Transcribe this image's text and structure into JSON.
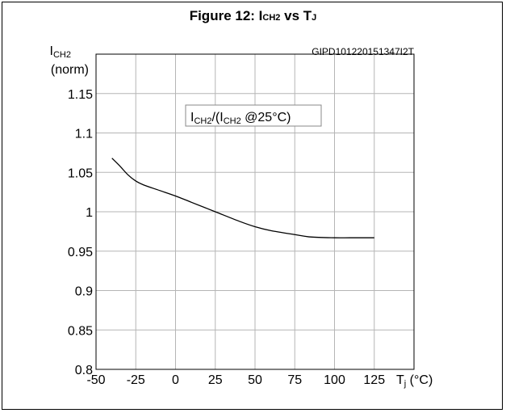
{
  "figure": {
    "title_main": "Figure 12: I",
    "title_sub": "CH2",
    "title_mid": " vs T",
    "title_sub2": "J"
  },
  "chart_data": {
    "type": "line",
    "code": "GIPD101220151347I2T",
    "ylabel": {
      "main": "I",
      "sub": "CH2",
      "unit": "(norm)"
    },
    "xlabel": {
      "main": "T",
      "sub": "j",
      "unit": " (°C)"
    },
    "annotation": {
      "p1": "I",
      "s1": "CH2",
      "p2": "/(I",
      "s2": "CH2",
      "p3": " @25°C)"
    },
    "xlim": [
      -50,
      150
    ],
    "ylim": [
      0.8,
      1.2
    ],
    "x_ticks": [
      "-50",
      "-25",
      "0",
      "25",
      "50",
      "75",
      "100",
      "125"
    ],
    "y_ticks": [
      "0.8",
      "0.85",
      "0.9",
      "0.95",
      "1",
      "1.05",
      "1.1",
      "1.15"
    ],
    "grid": true,
    "series": [
      {
        "x": [
          -40,
          -35,
          -30,
          -25,
          -20,
          -10,
          0,
          10,
          25,
          40,
          50,
          60,
          75,
          85,
          100,
          110,
          125
        ],
        "y": [
          1.068,
          1.058,
          1.047,
          1.039,
          1.034,
          1.027,
          1.02,
          1.012,
          1.0,
          0.988,
          0.981,
          0.976,
          0.971,
          0.968,
          0.967,
          0.967,
          0.967
        ]
      }
    ]
  }
}
